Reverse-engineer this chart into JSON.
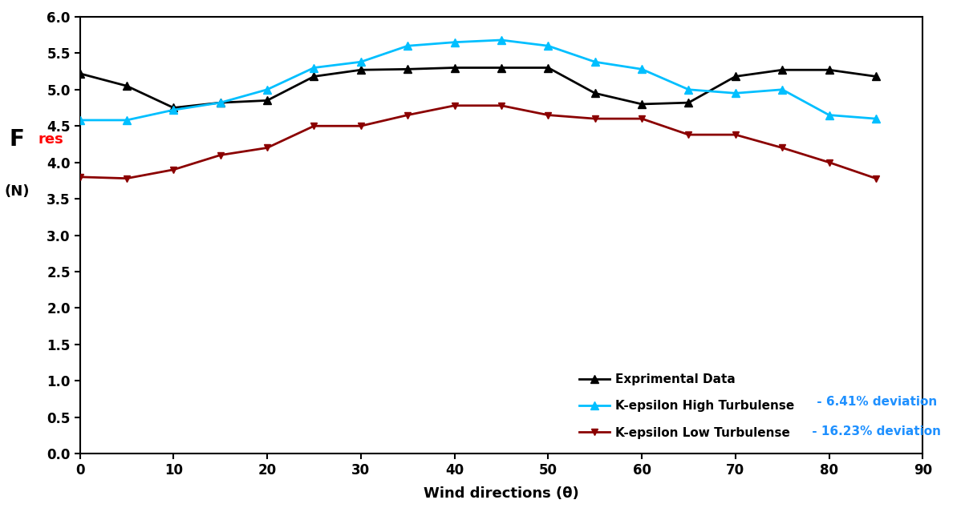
{
  "x": [
    0,
    5,
    10,
    15,
    20,
    25,
    30,
    35,
    40,
    45,
    50,
    55,
    60,
    65,
    70,
    75,
    80,
    85
  ],
  "experimental": [
    5.22,
    5.05,
    4.75,
    4.82,
    4.85,
    5.18,
    5.27,
    5.28,
    5.3,
    5.3,
    5.3,
    4.95,
    4.8,
    4.82,
    5.18,
    5.27,
    5.27,
    5.18
  ],
  "k_eps_high": [
    4.58,
    4.58,
    4.72,
    4.82,
    5.0,
    5.3,
    5.38,
    5.6,
    5.65,
    5.68,
    5.6,
    5.38,
    5.28,
    5.0,
    4.95,
    5.0,
    4.65,
    4.6
  ],
  "k_eps_low": [
    3.8,
    3.78,
    3.9,
    4.1,
    4.2,
    4.5,
    4.5,
    4.65,
    4.78,
    4.78,
    4.65,
    4.6,
    4.6,
    4.38,
    4.38,
    4.2,
    4.0,
    3.78
  ],
  "exp_color": "#000000",
  "high_color": "#00BFFF",
  "low_color": "#8B0000",
  "xlabel": "Wind directions (θ)",
  "xlim": [
    0,
    90
  ],
  "ylim": [
    0.0,
    6.0
  ],
  "yticks": [
    0.0,
    0.5,
    1.0,
    1.5,
    2.0,
    2.5,
    3.0,
    3.5,
    4.0,
    4.5,
    5.0,
    5.5,
    6.0
  ],
  "xticks": [
    0,
    10,
    20,
    30,
    40,
    50,
    60,
    70,
    80,
    90
  ],
  "legend_exp": "Exprimental Data",
  "legend_high": "K-epsilon High Turbulense",
  "legend_low": "K-epsilon Low Turbulense",
  "deviation_high": " - 6.41% deviation",
  "deviation_low": " - 16.23% deviation",
  "deviation_color": "#1E90FF"
}
